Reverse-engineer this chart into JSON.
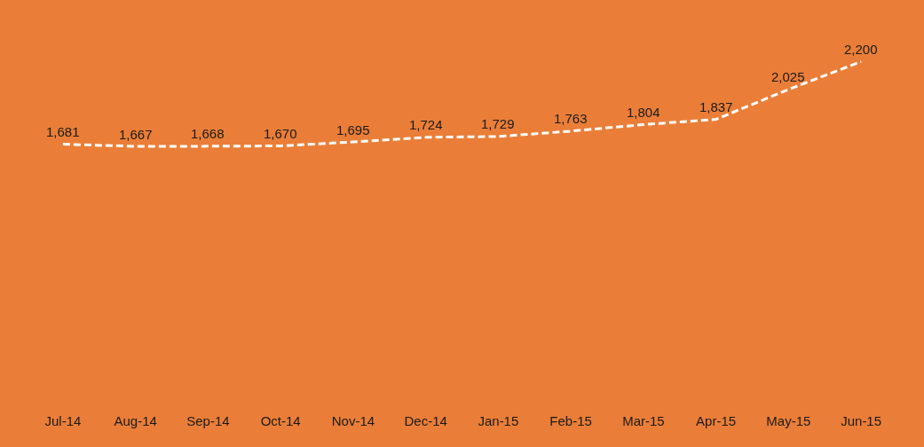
{
  "chart_data": {
    "type": "line",
    "categories": [
      "Jul-14",
      "Aug-14",
      "Sep-14",
      "Oct-14",
      "Nov-14",
      "Dec-14",
      "Jan-15",
      "Feb-15",
      "Mar-15",
      "Apr-15",
      "May-15",
      "Jun-15"
    ],
    "series": [
      {
        "color": "#ffffff",
        "values": [
          1681,
          1667,
          1668,
          1670,
          1695,
          1724,
          1729,
          1763,
          1804,
          1837,
          2025,
          2200
        ],
        "value_labels": [
          "1,681",
          "1,667",
          "1,668",
          "1,670",
          "1,695",
          "1,724",
          "1,729",
          "1,763",
          "1,804",
          "1,837",
          "2,025",
          "2,200"
        ]
      }
    ],
    "line_style": "dashed",
    "tick_labels": "x"
  }
}
